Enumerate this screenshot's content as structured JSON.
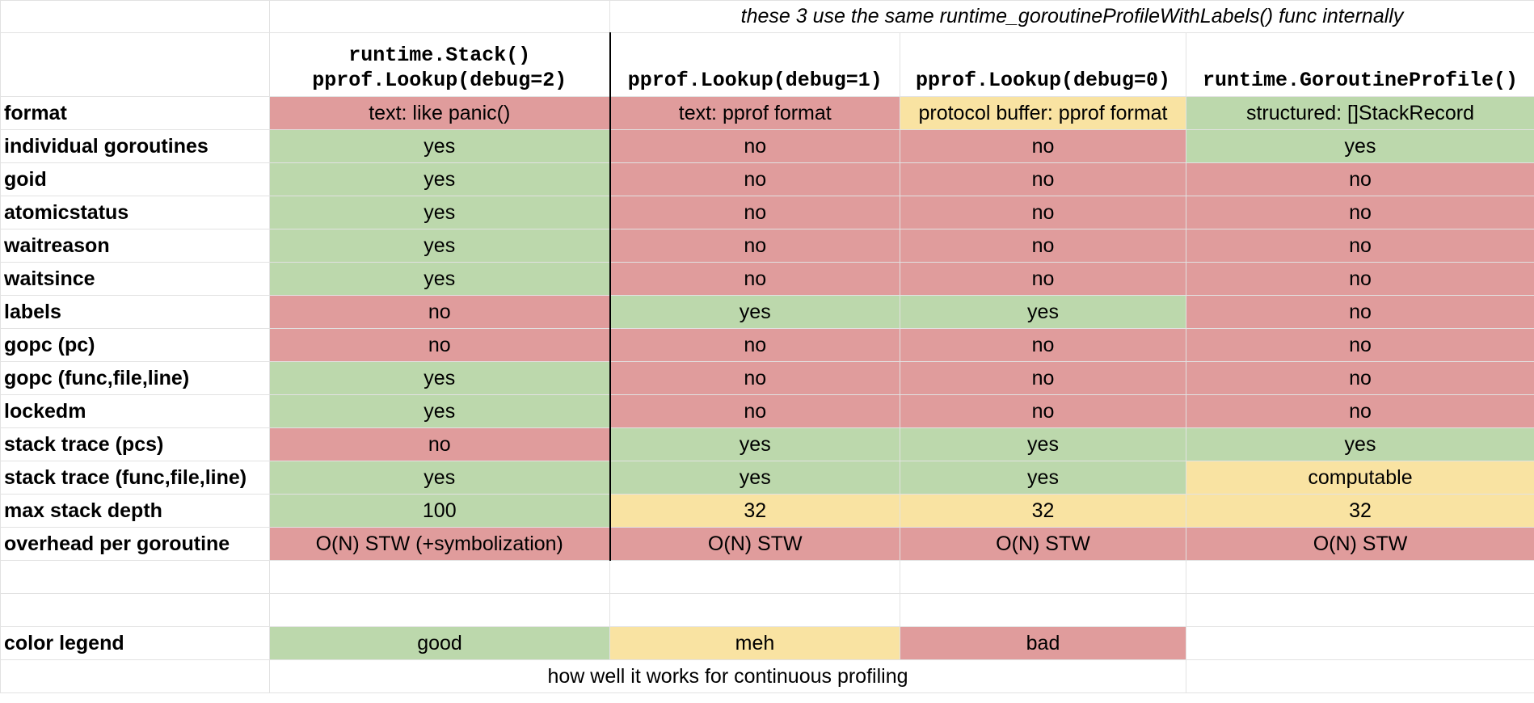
{
  "note": "these 3 use the same runtime_goroutineProfileWithLabels() func internally",
  "columns": [
    {
      "line1": "runtime.Stack()",
      "line2": "pprof.Lookup(debug=2)"
    },
    {
      "line1": "",
      "line2": "pprof.Lookup(debug=1)"
    },
    {
      "line1": "",
      "line2": "pprof.Lookup(debug=0)"
    },
    {
      "line1": "",
      "line2": "runtime.GoroutineProfile()"
    }
  ],
  "rows": [
    {
      "label": "format",
      "cells": [
        {
          "text": "text: like panic()",
          "rating": "bad"
        },
        {
          "text": "text: pprof format",
          "rating": "bad"
        },
        {
          "text": "protocol buffer: pprof format",
          "rating": "meh"
        },
        {
          "text": "structured: []StackRecord",
          "rating": "good"
        }
      ]
    },
    {
      "label": "individual goroutines",
      "cells": [
        {
          "text": "yes",
          "rating": "good"
        },
        {
          "text": "no",
          "rating": "bad"
        },
        {
          "text": "no",
          "rating": "bad"
        },
        {
          "text": "yes",
          "rating": "good"
        }
      ]
    },
    {
      "label": "goid",
      "cells": [
        {
          "text": "yes",
          "rating": "good"
        },
        {
          "text": "no",
          "rating": "bad"
        },
        {
          "text": "no",
          "rating": "bad"
        },
        {
          "text": "no",
          "rating": "bad"
        }
      ]
    },
    {
      "label": "atomicstatus",
      "cells": [
        {
          "text": "yes",
          "rating": "good"
        },
        {
          "text": "no",
          "rating": "bad"
        },
        {
          "text": "no",
          "rating": "bad"
        },
        {
          "text": "no",
          "rating": "bad"
        }
      ]
    },
    {
      "label": "waitreason",
      "cells": [
        {
          "text": "yes",
          "rating": "good"
        },
        {
          "text": "no",
          "rating": "bad"
        },
        {
          "text": "no",
          "rating": "bad"
        },
        {
          "text": "no",
          "rating": "bad"
        }
      ]
    },
    {
      "label": "waitsince",
      "cells": [
        {
          "text": "yes",
          "rating": "good"
        },
        {
          "text": "no",
          "rating": "bad"
        },
        {
          "text": "no",
          "rating": "bad"
        },
        {
          "text": "no",
          "rating": "bad"
        }
      ]
    },
    {
      "label": "labels",
      "cells": [
        {
          "text": "no",
          "rating": "bad"
        },
        {
          "text": "yes",
          "rating": "good"
        },
        {
          "text": "yes",
          "rating": "good"
        },
        {
          "text": "no",
          "rating": "bad"
        }
      ]
    },
    {
      "label": "gopc (pc)",
      "cells": [
        {
          "text": "no",
          "rating": "bad"
        },
        {
          "text": "no",
          "rating": "bad"
        },
        {
          "text": "no",
          "rating": "bad"
        },
        {
          "text": "no",
          "rating": "bad"
        }
      ]
    },
    {
      "label": "gopc (func,file,line)",
      "cells": [
        {
          "text": "yes",
          "rating": "good"
        },
        {
          "text": "no",
          "rating": "bad"
        },
        {
          "text": "no",
          "rating": "bad"
        },
        {
          "text": "no",
          "rating": "bad"
        }
      ]
    },
    {
      "label": "lockedm",
      "cells": [
        {
          "text": "yes",
          "rating": "good"
        },
        {
          "text": "no",
          "rating": "bad"
        },
        {
          "text": "no",
          "rating": "bad"
        },
        {
          "text": "no",
          "rating": "bad"
        }
      ]
    },
    {
      "label": "stack trace (pcs)",
      "cells": [
        {
          "text": "no",
          "rating": "bad"
        },
        {
          "text": "yes",
          "rating": "good"
        },
        {
          "text": "yes",
          "rating": "good"
        },
        {
          "text": "yes",
          "rating": "good"
        }
      ]
    },
    {
      "label": "stack trace (func,file,line)",
      "cells": [
        {
          "text": "yes",
          "rating": "good"
        },
        {
          "text": "yes",
          "rating": "good"
        },
        {
          "text": "yes",
          "rating": "good"
        },
        {
          "text": "computable",
          "rating": "meh"
        }
      ]
    },
    {
      "label": "max stack depth",
      "cells": [
        {
          "text": "100",
          "rating": "good"
        },
        {
          "text": "32",
          "rating": "meh"
        },
        {
          "text": "32",
          "rating": "meh"
        },
        {
          "text": "32",
          "rating": "meh"
        }
      ]
    },
    {
      "label": "overhead per goroutine",
      "cells": [
        {
          "text": "O(N) STW (+symbolization)",
          "rating": "bad"
        },
        {
          "text": "O(N) STW",
          "rating": "bad"
        },
        {
          "text": "O(N) STW",
          "rating": "bad"
        },
        {
          "text": "O(N) STW",
          "rating": "bad"
        }
      ]
    }
  ],
  "legend": {
    "label": "color legend",
    "good": "good",
    "meh": "meh",
    "bad": "bad",
    "caption": "how well it works for continuous profiling"
  },
  "colors": {
    "good": "#bcd8ac",
    "meh": "#f9e3a2",
    "bad": "#e09c9c",
    "gridline": "#e2e2e2"
  }
}
